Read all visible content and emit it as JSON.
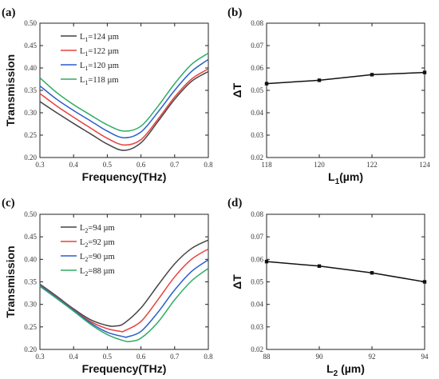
{
  "chart_data": [
    {
      "panel_label": "(a)",
      "type": "line",
      "xlabel": "Frequency(THz)",
      "ylabel": "Transmission",
      "xlim": [
        0.3,
        0.8
      ],
      "ylim": [
        0.2,
        0.5
      ],
      "xticks": [
        "0.3",
        "0.4",
        "0.5",
        "0.6",
        "0.7",
        "0.8"
      ],
      "yticks": [
        "0.20",
        "0.25",
        "0.30",
        "0.35",
        "0.40",
        "0.45",
        "0.50"
      ],
      "legend_placement": "top-left",
      "series": [
        {
          "name_base": "L",
          "name_sub": "1",
          "name_tail": "=124 µm",
          "color": "#444444",
          "x": [
            0.3,
            0.35,
            0.4,
            0.45,
            0.5,
            0.55,
            0.6,
            0.65,
            0.7,
            0.75,
            0.8
          ],
          "y": [
            0.325,
            0.3,
            0.276,
            0.253,
            0.23,
            0.216,
            0.233,
            0.28,
            0.33,
            0.37,
            0.392
          ]
        },
        {
          "name_base": "L",
          "name_sub": "1",
          "name_tail": "=122 µm",
          "color": "#e8403c",
          "x": [
            0.3,
            0.35,
            0.4,
            0.45,
            0.5,
            0.55,
            0.6,
            0.65,
            0.7,
            0.75,
            0.8
          ],
          "y": [
            0.343,
            0.315,
            0.29,
            0.266,
            0.243,
            0.228,
            0.24,
            0.285,
            0.335,
            0.375,
            0.398
          ]
        },
        {
          "name_base": "L",
          "name_sub": "1",
          "name_tail": "=120 µm",
          "color": "#2a5fcc",
          "x": [
            0.3,
            0.35,
            0.4,
            0.45,
            0.5,
            0.55,
            0.6,
            0.65,
            0.7,
            0.75,
            0.8
          ],
          "y": [
            0.36,
            0.33,
            0.305,
            0.282,
            0.259,
            0.244,
            0.257,
            0.301,
            0.35,
            0.392,
            0.419
          ]
        },
        {
          "name_base": "L",
          "name_sub": "1",
          "name_tail": "=118 µm",
          "color": "#2eab64",
          "x": [
            0.3,
            0.35,
            0.4,
            0.45,
            0.5,
            0.55,
            0.6,
            0.65,
            0.7,
            0.75,
            0.8
          ],
          "y": [
            0.378,
            0.345,
            0.318,
            0.295,
            0.273,
            0.259,
            0.27,
            0.314,
            0.365,
            0.408,
            0.433
          ]
        }
      ]
    },
    {
      "panel_label": "(b)",
      "type": "line",
      "xlabel_base": "L",
      "xlabel_sub": "1",
      "xlabel_tail": "(µm)",
      "ylabel": "ΔT",
      "xlim": [
        118,
        124
      ],
      "ylim": [
        0.02,
        0.08
      ],
      "xticks": [
        "118",
        "120",
        "122",
        "124"
      ],
      "yticks": [
        "0.02",
        "0.03",
        "0.04",
        "0.05",
        "0.06",
        "0.07",
        "0.08"
      ],
      "series": [
        {
          "color": "#111111",
          "marker": "square",
          "x": [
            118,
            120,
            122,
            124
          ],
          "y": [
            0.053,
            0.0545,
            0.057,
            0.058
          ]
        }
      ]
    },
    {
      "panel_label": "(c)",
      "type": "line",
      "xlabel": "Frequency(THz)",
      "ylabel": "Transmission",
      "xlim": [
        0.3,
        0.8
      ],
      "ylim": [
        0.2,
        0.5
      ],
      "xticks": [
        "0.3",
        "0.4",
        "0.5",
        "0.6",
        "0.7",
        "0.8"
      ],
      "yticks": [
        "0.20",
        "0.25",
        "0.30",
        "0.35",
        "0.40",
        "0.45",
        "0.50"
      ],
      "legend_placement": "top-center",
      "series": [
        {
          "name_base": "L",
          "name_sub": "2",
          "name_tail": "=94 µm",
          "color": "#444444",
          "x": [
            0.3,
            0.35,
            0.4,
            0.45,
            0.5,
            0.525,
            0.55,
            0.6,
            0.65,
            0.7,
            0.75,
            0.8
          ],
          "y": [
            0.345,
            0.318,
            0.29,
            0.266,
            0.253,
            0.252,
            0.258,
            0.292,
            0.342,
            0.39,
            0.424,
            0.443
          ]
        },
        {
          "name_base": "L",
          "name_sub": "2",
          "name_tail": "=92 µm",
          "color": "#e8403c",
          "x": [
            0.3,
            0.35,
            0.4,
            0.45,
            0.5,
            0.54,
            0.55,
            0.6,
            0.65,
            0.7,
            0.75,
            0.8
          ],
          "y": [
            0.343,
            0.316,
            0.288,
            0.262,
            0.246,
            0.24,
            0.241,
            0.262,
            0.31,
            0.361,
            0.4,
            0.423
          ]
        },
        {
          "name_base": "L",
          "name_sub": "2",
          "name_tail": "=90 µm",
          "color": "#2a5fcc",
          "x": [
            0.3,
            0.35,
            0.4,
            0.45,
            0.5,
            0.55,
            0.56,
            0.6,
            0.65,
            0.7,
            0.75,
            0.8
          ],
          "y": [
            0.342,
            0.315,
            0.287,
            0.259,
            0.238,
            0.228,
            0.228,
            0.24,
            0.282,
            0.332,
            0.373,
            0.399
          ]
        },
        {
          "name_base": "L",
          "name_sub": "2",
          "name_tail": "=88 µm",
          "color": "#2eab64",
          "x": [
            0.3,
            0.35,
            0.4,
            0.45,
            0.5,
            0.55,
            0.57,
            0.6,
            0.65,
            0.7,
            0.75,
            0.8
          ],
          "y": [
            0.34,
            0.313,
            0.285,
            0.256,
            0.233,
            0.219,
            0.218,
            0.225,
            0.26,
            0.31,
            0.352,
            0.38
          ]
        }
      ]
    },
    {
      "panel_label": "(d)",
      "type": "line",
      "xlabel_base": "L",
      "xlabel_sub": "2",
      "xlabel_tail": " (µm)",
      "ylabel": "ΔT",
      "xlim": [
        88,
        94
      ],
      "ylim": [
        0.02,
        0.08
      ],
      "xticks": [
        "88",
        "90",
        "92",
        "94"
      ],
      "yticks": [
        "0.02",
        "0.03",
        "0.04",
        "0.05",
        "0.06",
        "0.07",
        "0.08"
      ],
      "series": [
        {
          "color": "#111111",
          "marker": "square",
          "x": [
            88,
            90,
            92,
            94
          ],
          "y": [
            0.059,
            0.057,
            0.054,
            0.05
          ]
        }
      ]
    }
  ]
}
